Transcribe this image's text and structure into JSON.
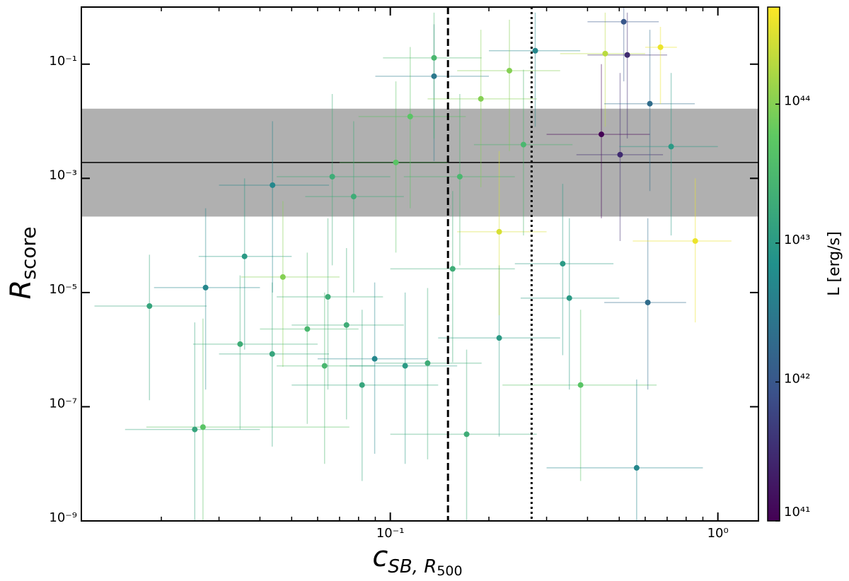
{
  "chart_data": {
    "type": "scatter",
    "x_label": "c",
    "x_label_sub": "SB, R",
    "x_label_subsub": "500",
    "y_label": "R",
    "y_label_sub": "score",
    "x_scale": "log",
    "y_scale": "log",
    "xlim": [
      0.0114,
      1.33
    ],
    "ylim": [
      1e-09,
      1.0
    ],
    "xticks": [
      {
        "value": 0.1,
        "label": "10⁻¹"
      },
      {
        "value": 1,
        "label": "10⁰"
      }
    ],
    "xminorticks": [
      0.02,
      0.03,
      0.04,
      0.05,
      0.06,
      0.07,
      0.08,
      0.09,
      0.2,
      0.3,
      0.4,
      0.5,
      0.6,
      0.7,
      0.8,
      0.9
    ],
    "yticks": [
      {
        "value": 1e-09,
        "label": "10⁻⁹"
      },
      {
        "value": 1e-07,
        "label": "10⁻⁷"
      },
      {
        "value": 1e-05,
        "label": "10⁻⁵"
      },
      {
        "value": 0.001,
        "label": "10⁻³"
      },
      {
        "value": 0.1,
        "label": "10⁻¹"
      }
    ],
    "band": {
      "ylim": [
        0.000214,
        0.0166
      ],
      "color": "#b0b0b0"
    },
    "hline": {
      "value": 0.0019,
      "color": "#000000"
    },
    "vlines": [
      {
        "value": 0.15,
        "style": "dashed",
        "color": "#000000"
      },
      {
        "value": 0.27,
        "style": "dotted",
        "color": "#000000"
      }
    ],
    "colorbar": {
      "label": "L [erg/s]",
      "scale": "log",
      "colormap": "viridis",
      "clim": [
        1e+41,
        5e+44
      ],
      "ticks": [
        {
          "value": 1e+41,
          "label": "10⁴¹"
        },
        {
          "value": 1e+42,
          "label": "10⁴²"
        },
        {
          "value": 1e+43,
          "label": "10⁴³"
        },
        {
          "value": 1e+44,
          "label": "10⁴⁴"
        }
      ]
    },
    "series": [
      {
        "x": [
          0.0184,
          0.0253,
          0.0268,
          0.0273,
          0.0348,
          0.0359,
          0.0436,
          0.0437,
          0.047,
          0.0558,
          0.063,
          0.0645,
          0.0735,
          0.082,
          0.0896,
          0.111,
          0.13,
          0.136,
          0.136,
          0.171,
          0.215,
          0.215,
          0.277,
          0.336,
          0.381,
          0.352,
          0.441,
          0.453,
          0.516,
          0.529,
          0.503,
          0.565,
          0.611,
          0.62,
          0.668,
          0.72,
          0.853,
          0.0773,
          0.104,
          0.115,
          0.163,
          0.189,
          0.231,
          0.255,
          0.0665,
          0.155
        ],
        "y": [
          5.8e-06,
          4e-08,
          4.4e-08,
          1.22e-05,
          1.25e-06,
          4.3e-05,
          8.4e-07,
          0.00076,
          1.87e-05,
          2.3e-06,
          5.2e-07,
          8.4e-06,
          2.7e-06,
          2.4e-07,
          6.9e-07,
          5.2e-07,
          5.8e-07,
          0.0615,
          0.129,
          3.3e-08,
          1.6e-06,
          0.000116,
          0.172,
          3.2e-05,
          2.4e-07,
          8e-06,
          0.0059,
          0.153,
          0.553,
          0.145,
          0.0026,
          8.5e-09,
          6.7e-06,
          0.0203,
          0.198,
          0.0036,
          8e-05,
          0.00048,
          0.0019,
          0.0121,
          0.00107,
          0.0247,
          0.077,
          0.0039,
          0.00107,
          2.6e-05
        ],
        "x_low": [
          0.0125,
          0.0155,
          0.018,
          0.019,
          0.025,
          0.026,
          0.03,
          0.03,
          0.035,
          0.04,
          0.045,
          0.045,
          0.05,
          0.05,
          0.06,
          0.075,
          0.09,
          0.09,
          0.095,
          0.1,
          0.14,
          0.16,
          0.2,
          0.24,
          0.22,
          0.25,
          0.3,
          0.33,
          0.4,
          0.4,
          0.37,
          0.3,
          0.45,
          0.45,
          0.6,
          0.5,
          0.55,
          0.055,
          0.07,
          0.08,
          0.11,
          0.13,
          0.16,
          0.18,
          0.045,
          0.1
        ],
        "x_high": [
          0.0275,
          0.04,
          0.075,
          0.04,
          0.06,
          0.05,
          0.065,
          0.065,
          0.07,
          0.08,
          0.09,
          0.095,
          0.11,
          0.14,
          0.13,
          0.16,
          0.19,
          0.2,
          0.19,
          0.28,
          0.33,
          0.3,
          0.38,
          0.48,
          0.65,
          0.5,
          0.62,
          0.6,
          0.66,
          0.7,
          0.68,
          0.9,
          0.8,
          0.85,
          0.75,
          1.0,
          1.1,
          0.11,
          0.15,
          0.17,
          0.24,
          0.28,
          0.33,
          0.36,
          0.1,
          0.24
        ],
        "y_low": [
          1.3e-07,
          1e-09,
          1e-09,
          2e-07,
          4e-08,
          1e-06,
          2e-08,
          1e-05,
          5e-07,
          5e-08,
          1e-08,
          2e-07,
          6e-08,
          5e-09,
          1.5e-08,
          1e-08,
          1.2e-08,
          0.002,
          0.005,
          1e-09,
          3e-08,
          4e-06,
          0.008,
          8e-07,
          5e-09,
          2e-07,
          0.0002,
          0.008,
          0.05,
          0.005,
          8e-05,
          1e-09,
          2e-07,
          0.0006,
          0.02,
          0.0001,
          3e-06,
          1e-05,
          5e-05,
          0.0003,
          3e-05,
          0.0007,
          0.003,
          0.0001,
          3e-05,
          6e-07
        ],
        "y_high": [
          4.6e-05,
          3e-06,
          3.5e-06,
          0.0003,
          2e-05,
          0.001,
          1.5e-05,
          0.01,
          0.0004,
          5e-05,
          1e-05,
          0.0002,
          6e-05,
          5e-06,
          1.5e-05,
          1e-05,
          1.2e-05,
          0.5,
          0.8,
          1e-06,
          3e-05,
          0.003,
          0.8,
          0.0008,
          5e-06,
          0.0002,
          0.1,
          0.8,
          1.0,
          0.8,
          0.07,
          3e-07,
          0.0002,
          0.4,
          0.45,
          0.07,
          0.001,
          0.01,
          0.05,
          0.2,
          0.03,
          0.4,
          0.6,
          0.08,
          0.03,
          0.0006
        ],
        "luminosity": [
          1.5e+43,
          1.5e+43,
          5e+43,
          5e+42,
          2e+43,
          1e+43,
          1.5e+43,
          5e+42,
          1e+44,
          3e+43,
          3e+43,
          2e+43,
          2e+43,
          1.5e+43,
          5e+42,
          1e+43,
          2e+43,
          3e+42,
          3e+43,
          2e+43,
          1e+43,
          3e+44,
          5e+42,
          1e+43,
          5e+43,
          1e+43,
          1e+41,
          2e+44,
          1e+42,
          3e+41,
          3e+41,
          5e+42,
          2e+42,
          2e+42,
          4e+44,
          1e+43,
          4e+44,
          2e+43,
          5e+43,
          5e+43,
          3e+43,
          1e+44,
          1e+44,
          3e+43,
          2e+43,
          2e+43
        ]
      }
    ]
  }
}
